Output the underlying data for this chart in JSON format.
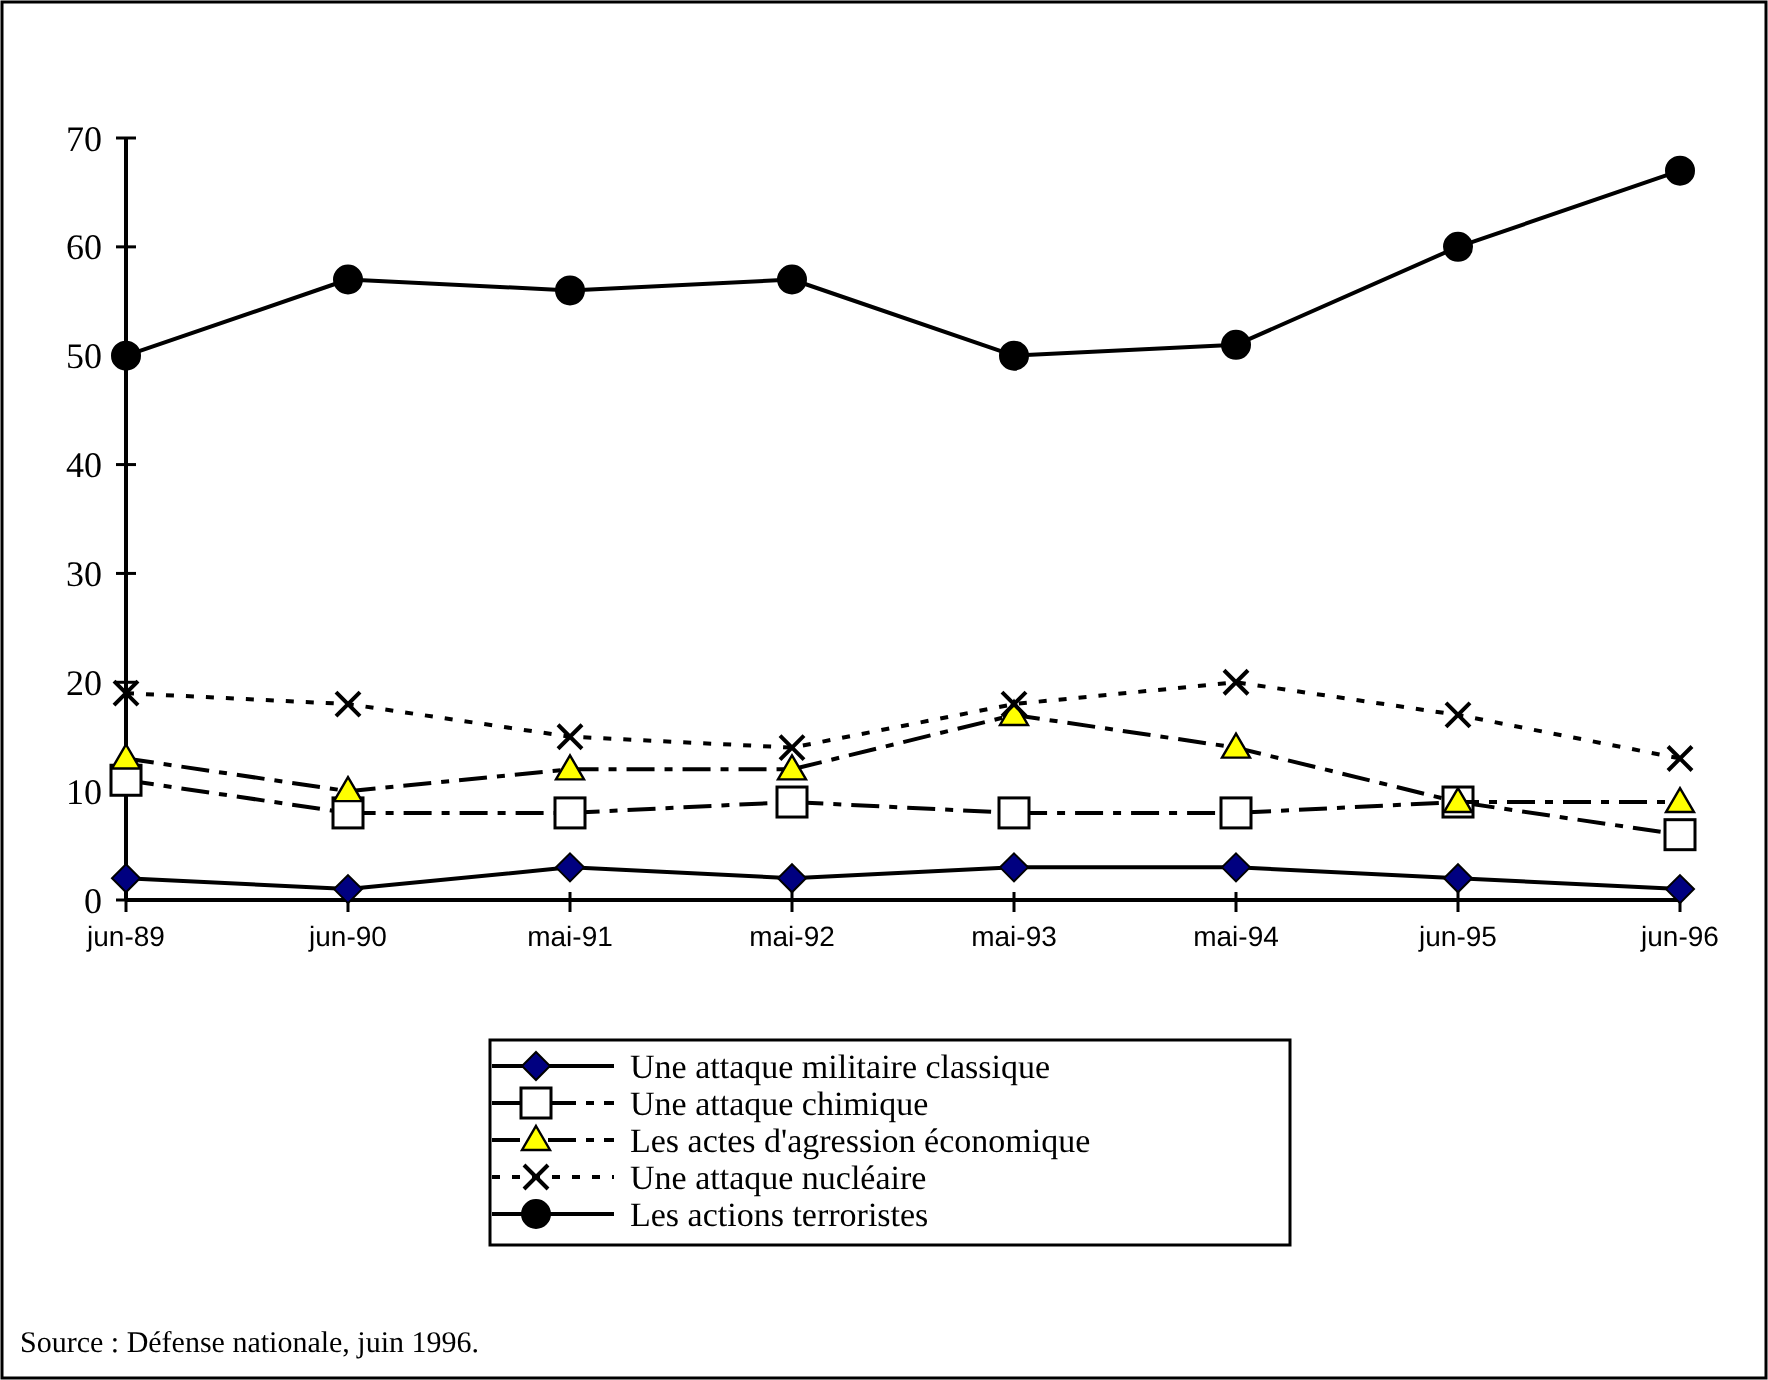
{
  "chart_data": {
    "type": "line",
    "categories": [
      "jun-89",
      "jun-90",
      "mai-91",
      "mai-92",
      "mai-93",
      "mai-94",
      "jun-95",
      "jun-96"
    ],
    "ylim": [
      0,
      70
    ],
    "yticks": [
      0,
      10,
      20,
      30,
      40,
      50,
      60,
      70
    ],
    "grid": false,
    "legend": "bottom",
    "series": [
      {
        "name": "Une attaque militaire classique",
        "color": "#000080",
        "marker": "diamond",
        "line_style": "solid",
        "values": [
          2,
          1,
          3,
          2,
          3,
          3,
          2,
          1
        ]
      },
      {
        "name": "Une attaque chimique",
        "color": "#ffffff",
        "marker": "square",
        "line_style": "dashed",
        "values": [
          11,
          8,
          8,
          9,
          8,
          8,
          9,
          6
        ]
      },
      {
        "name": "Les actes d'agression économique",
        "color": "#ffff00",
        "marker": "triangle",
        "line_style": "dashed",
        "values": [
          13,
          10,
          12,
          12,
          17,
          14,
          9,
          9
        ]
      },
      {
        "name": "Une attaque nucléaire",
        "color": "#000000",
        "marker": "cross",
        "line_style": "dotted",
        "values": [
          19,
          18,
          15,
          14,
          18,
          20,
          17,
          13
        ]
      },
      {
        "name": "Les actions terroristes",
        "color": "#000000",
        "marker": "circle",
        "line_style": "solid",
        "values": [
          50,
          57,
          56,
          57,
          50,
          51,
          60,
          67
        ]
      }
    ],
    "annotations": [
      "Source : Défense nationale, juin 1996."
    ]
  }
}
